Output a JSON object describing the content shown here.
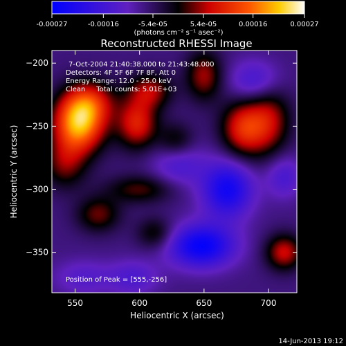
{
  "chart_data": {
    "type": "heatmap",
    "title": "Reconstructed RHESSI Image",
    "xlabel": "Heliocentric X (arcsec)",
    "ylabel": "Heliocentric Y (arcsec)",
    "xlim": [
      532,
      722
    ],
    "ylim": [
      -382,
      -190
    ],
    "x_ticks": [
      550,
      600,
      650,
      700
    ],
    "y_ticks": [
      -200,
      -250,
      -300,
      -350
    ],
    "colorbar": {
      "colormap": "blue-purple-red-yellow-white",
      "range": [
        -0.00027,
        0.00027
      ],
      "tick_values": [
        -0.00027,
        -0.00016,
        -5.4e-05,
        5.4e-05,
        0.00016,
        0.00027
      ],
      "tick_labels": [
        "-0.00027",
        "-0.00016",
        "-5.4e-05",
        "5.4e-05",
        "0.00016",
        "0.00027"
      ],
      "unit_label": "(photons cm⁻² s⁻¹ asec⁻²)"
    },
    "annotations": [
      "7-Oct-2004 21:40:38.000 to 21:43:48.000",
      "Detectors: 4F 5F 6F 7F 8F, Att 0",
      "Energy Range: 12.0 - 25.0 keV",
      "Clean     Total counts: 5.01E+03"
    ],
    "peak_label": "Position of Peak = [555,-256]",
    "peak_position": [
      555,
      -256
    ],
    "sources": [
      {
        "x": 553,
        "y": -248,
        "value": 0.00027,
        "sx": 14,
        "sy": 16
      },
      {
        "x": 562,
        "y": -230,
        "value": 0.00012,
        "sx": 14,
        "sy": 12
      },
      {
        "x": 542,
        "y": -280,
        "value": 0.0001,
        "sx": 12,
        "sy": 14
      },
      {
        "x": 598,
        "y": -248,
        "value": 0.00016,
        "sx": 11,
        "sy": 14
      },
      {
        "x": 608,
        "y": -222,
        "value": 0.00012,
        "sx": 12,
        "sy": 10
      },
      {
        "x": 628,
        "y": -262,
        "value": 8e-05,
        "sx": 10,
        "sy": 10
      },
      {
        "x": 650,
        "y": -210,
        "value": 0.00012,
        "sx": 10,
        "sy": 14
      },
      {
        "x": 680,
        "y": -252,
        "value": 0.00016,
        "sx": 12,
        "sy": 16
      },
      {
        "x": 700,
        "y": -245,
        "value": 0.00013,
        "sx": 12,
        "sy": 20
      },
      {
        "x": 600,
        "y": -300,
        "value": 9e-05,
        "sx": 18,
        "sy": 8
      },
      {
        "x": 568,
        "y": -320,
        "value": 0.0001,
        "sx": 12,
        "sy": 10
      },
      {
        "x": 612,
        "y": -335,
        "value": 8e-05,
        "sx": 10,
        "sy": 9
      },
      {
        "x": 712,
        "y": -350,
        "value": 0.00014,
        "sx": 10,
        "sy": 10
      },
      {
        "x": 648,
        "y": -345,
        "value": -0.00019,
        "sx": 18,
        "sy": 12
      },
      {
        "x": 668,
        "y": -300,
        "value": -0.00017,
        "sx": 14,
        "sy": 16
      },
      {
        "x": 690,
        "y": -215,
        "value": -0.0001,
        "sx": 14,
        "sy": 12
      },
      {
        "x": 630,
        "y": -280,
        "value": -8e-05,
        "sx": 14,
        "sy": 12
      },
      {
        "x": 556,
        "y": -370,
        "value": -6e-05,
        "sx": 16,
        "sy": 10
      },
      {
        "x": 712,
        "y": -290,
        "value": -8e-05,
        "sx": 10,
        "sy": 12
      },
      {
        "x": 595,
        "y": -370,
        "value": -7e-05,
        "sx": 14,
        "sy": 10
      }
    ],
    "background_value": -7e-05
  },
  "footer": {
    "timestamp": "14-Jun-2013 19:12"
  }
}
